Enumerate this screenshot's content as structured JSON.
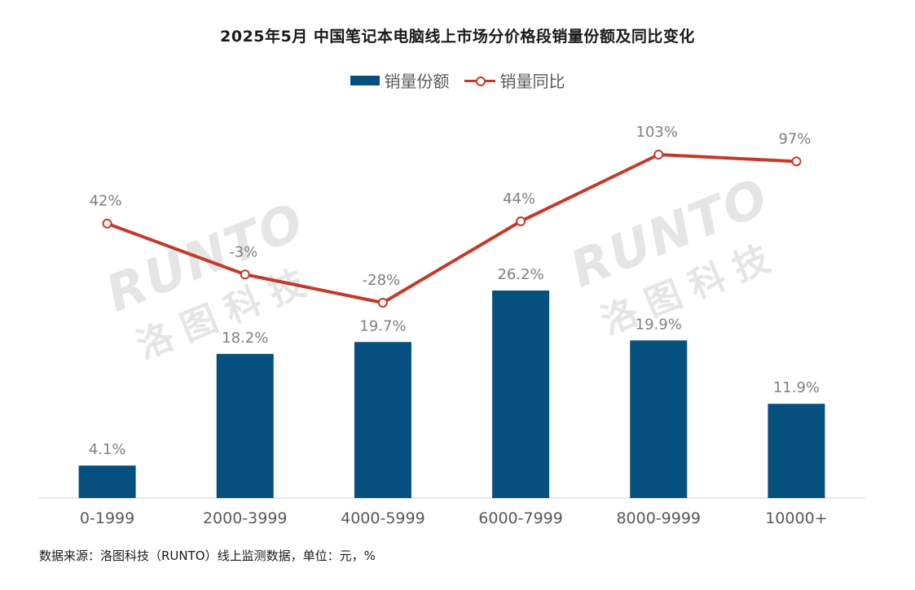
{
  "title": "2025年5月 中国笔记本电脑线上市场分价格段销量份额及同比变化",
  "legend": {
    "bar_label": "销量份额",
    "line_label": "销量同比"
  },
  "source": "数据来源：洛图科技（RUNTO）线上监测数据，单位：元，%",
  "watermark": {
    "en": "RUNTO",
    "cn": "洛图科技"
  },
  "colors": {
    "bar": "#06507f",
    "line": "#c33a2b",
    "axis": "#d0d0d0",
    "label": "#808080"
  },
  "chart_data": {
    "type": "bar",
    "categories": [
      "0-1999",
      "2000-3999",
      "4000-5999",
      "6000-7999",
      "8000-9999",
      "10000+"
    ],
    "series": [
      {
        "name": "销量份额",
        "type": "bar",
        "values": [
          4.1,
          18.2,
          19.7,
          26.2,
          19.9,
          11.9
        ],
        "labels": [
          "4.1%",
          "18.2%",
          "19.7%",
          "26.2%",
          "19.9%",
          "11.9%"
        ]
      },
      {
        "name": "销量同比",
        "type": "line",
        "values": [
          42,
          -3,
          -28,
          44,
          103,
          97
        ],
        "labels": [
          "42%",
          "-3%",
          "-28%",
          "44%",
          "103%",
          "97%"
        ]
      }
    ],
    "bar_axis_range": [
      0,
      30
    ],
    "line_axis_range": [
      -80,
      140
    ],
    "grid": false,
    "legend_position": "top-center"
  }
}
